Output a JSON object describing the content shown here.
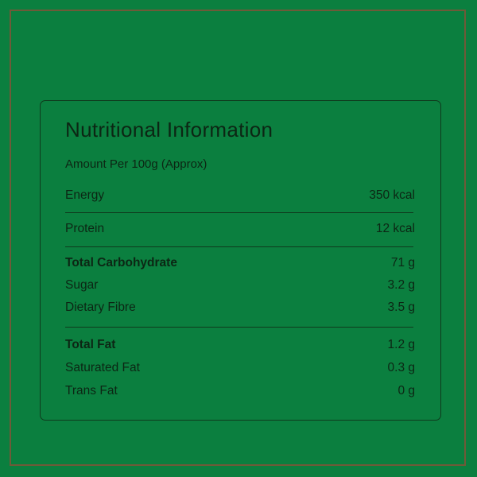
{
  "title": "Nutritional Information",
  "subtitle": "Amount Per 100g (Approx)",
  "rows": [
    {
      "label": "Energy",
      "value": "350 kcal",
      "bold": false
    },
    {
      "label": "Protein",
      "value": "12 kcal",
      "bold": false
    },
    {
      "label": "Total Carbohydrate",
      "value": "71 g",
      "bold": true
    },
    {
      "label": "Sugar",
      "value": "3.2 g",
      "bold": false
    },
    {
      "label": "Dietary Fibre",
      "value": "3.5 g",
      "bold": false
    },
    {
      "label": "Total Fat",
      "value": "1.2 g",
      "bold": true
    },
    {
      "label": "Saturated Fat",
      "value": "0.3 g",
      "bold": false
    },
    {
      "label": "Trans Fat",
      "value": "0 g",
      "bold": false
    }
  ],
  "colors": {
    "background": "#0b7f3f",
    "text": "#0c2614",
    "frame": "#6f5a38"
  }
}
